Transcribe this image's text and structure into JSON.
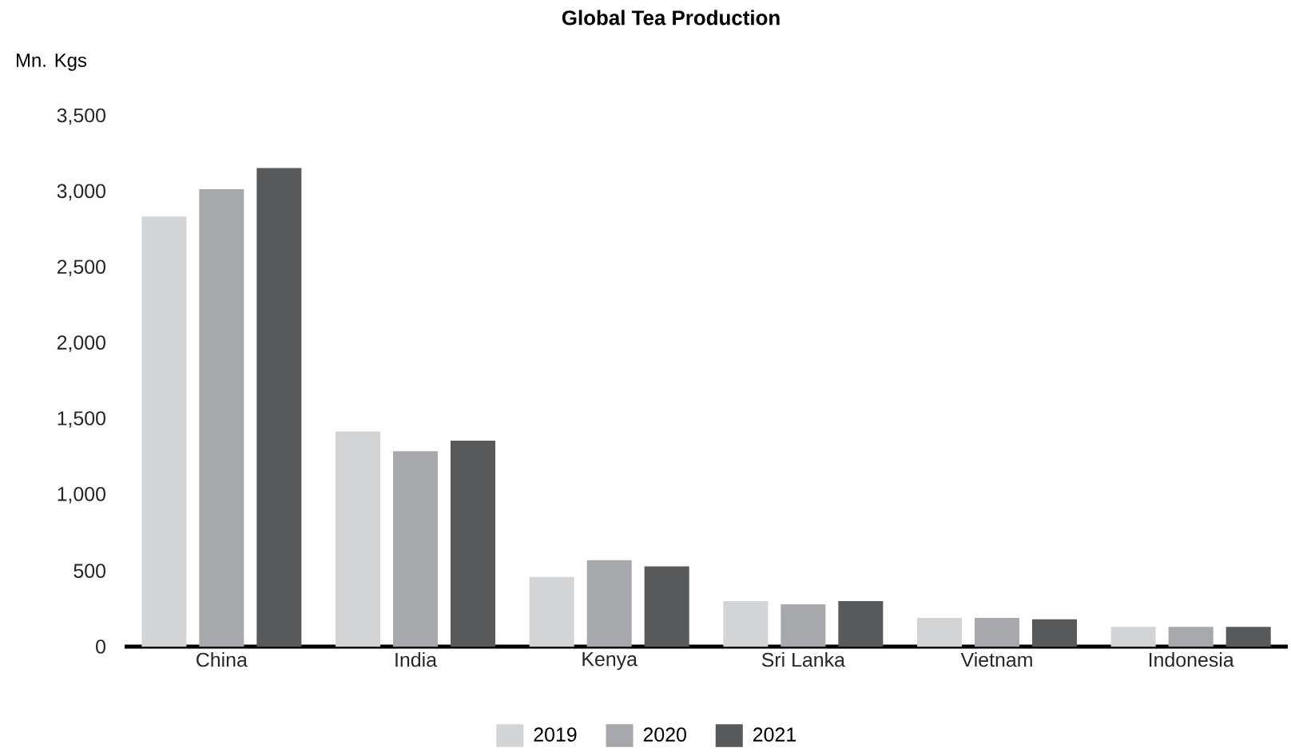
{
  "chart_data": {
    "type": "bar",
    "title": "Global Tea Production",
    "ylabel": "Mn. Kgs",
    "categories": [
      "China",
      "India",
      "Kenya",
      "Sri Lanka",
      "Vietnam",
      "Indonesia"
    ],
    "series": [
      {
        "name": "2019",
        "color": "#d3d4d6",
        "values": [
          2840,
          1420,
          460,
          300,
          190,
          130
        ]
      },
      {
        "name": "2020",
        "color": "#a7a8ab",
        "values": [
          3020,
          1290,
          570,
          280,
          190,
          130
        ]
      },
      {
        "name": "2021",
        "color": "#58595b",
        "values": [
          3160,
          1360,
          530,
          300,
          180,
          130
        ]
      }
    ],
    "ylim": [
      0,
      3500
    ],
    "yticks": [
      {
        "value": 0,
        "label": "0"
      },
      {
        "value": 500,
        "label": "500"
      },
      {
        "value": 1000,
        "label": "1,000"
      },
      {
        "value": 1500,
        "label": "1,500"
      },
      {
        "value": 2000,
        "label": "2,000"
      },
      {
        "value": 2500,
        "label": "2,500"
      },
      {
        "value": 3000,
        "label": "3,000"
      },
      {
        "value": 3500,
        "label": "3,500"
      }
    ],
    "legend": "bottom"
  }
}
